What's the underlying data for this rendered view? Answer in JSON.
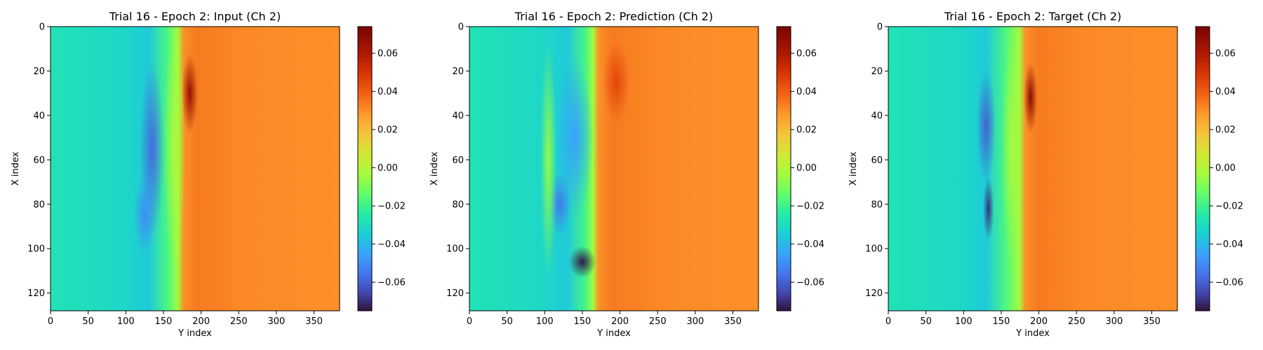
{
  "chart_data": [
    {
      "type": "heatmap",
      "title": "Trial 16 - Epoch 2: Input (Ch 2)",
      "xlabel": "Y index",
      "ylabel": "X index",
      "xlim": [
        0,
        384
      ],
      "ylim": [
        128,
        0
      ],
      "xticks": [
        "0",
        "50",
        "100",
        "150",
        "200",
        "250",
        "300",
        "350"
      ],
      "yticks": [
        "0",
        "20",
        "40",
        "60",
        "80",
        "100",
        "120"
      ],
      "colorbar": {
        "range": [
          -0.075,
          0.074
        ],
        "ticks": [
          "0.06",
          "0.04",
          "0.02",
          "0.00",
          "−0.02",
          "−0.04",
          "−0.06"
        ]
      },
      "colormap": "turbo"
    },
    {
      "type": "heatmap",
      "title": "Trial 16 - Epoch 2: Prediction (Ch 2)",
      "xlabel": "Y index",
      "ylabel": "X index",
      "xlim": [
        0,
        384
      ],
      "ylim": [
        128,
        0
      ],
      "xticks": [
        "0",
        "50",
        "100",
        "150",
        "200",
        "250",
        "300",
        "350"
      ],
      "yticks": [
        "0",
        "20",
        "40",
        "60",
        "80",
        "100",
        "120"
      ],
      "colorbar": {
        "range": [
          -0.075,
          0.074
        ],
        "ticks": [
          "0.06",
          "0.04",
          "0.02",
          "0.00",
          "−0.02",
          "−0.04",
          "−0.06"
        ]
      },
      "colormap": "turbo"
    },
    {
      "type": "heatmap",
      "title": "Trial 16 - Epoch 2: Target (Ch 2)",
      "xlabel": "Y index",
      "ylabel": "X index",
      "xlim": [
        0,
        384
      ],
      "ylim": [
        128,
        0
      ],
      "xticks": [
        "0",
        "50",
        "100",
        "150",
        "200",
        "250",
        "300",
        "350"
      ],
      "yticks": [
        "0",
        "20",
        "40",
        "60",
        "80",
        "100",
        "120"
      ],
      "colorbar": {
        "range": [
          -0.075,
          0.074
        ],
        "ticks": [
          "0.06",
          "0.04",
          "0.02",
          "0.00",
          "−0.02",
          "−0.04",
          "−0.06"
        ]
      },
      "colormap": "turbo"
    }
  ]
}
